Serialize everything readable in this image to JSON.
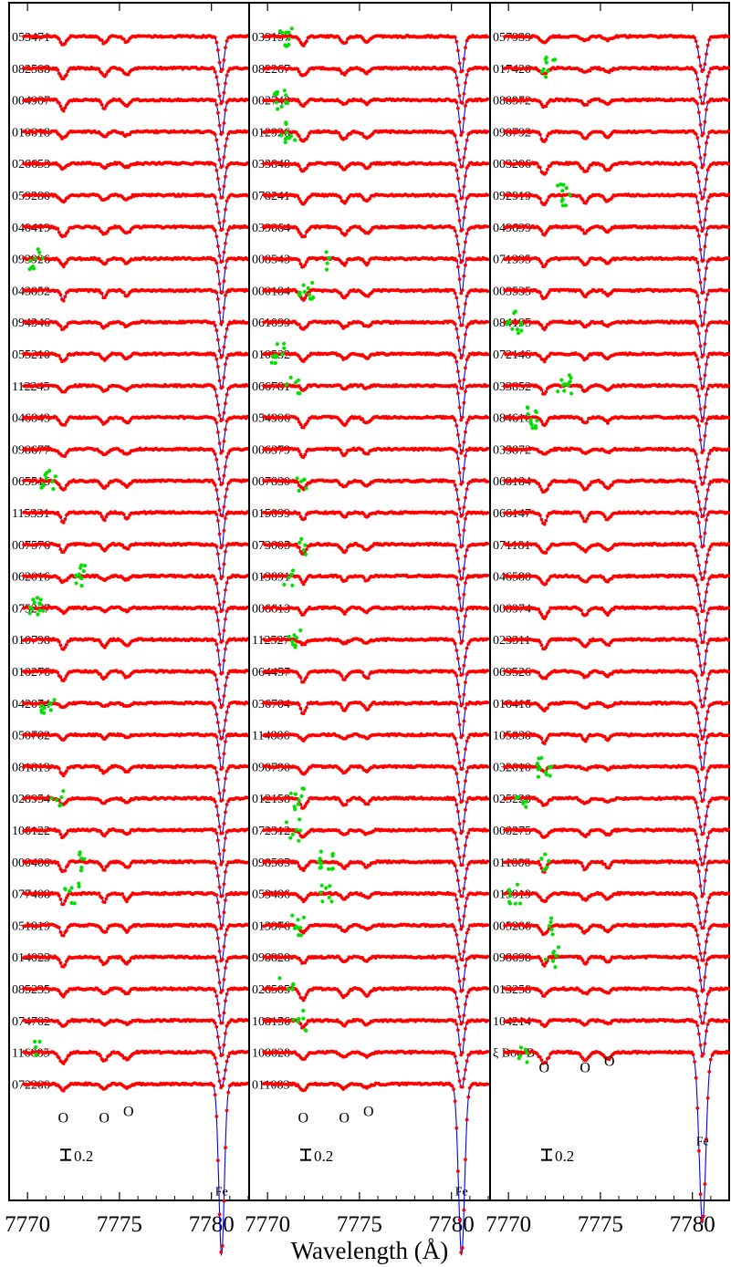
{
  "chart_data": {
    "type": "line",
    "x_axis": {
      "label": "Wavelength (Å)",
      "range": [
        7769,
        7782
      ],
      "ticks": [
        7770,
        7775,
        7780
      ],
      "tick_labels": [
        "7770",
        "7775",
        "7780"
      ]
    },
    "scale_bar": {
      "label": "0.2",
      "value": 0.2
    },
    "legend": null,
    "series_colors": {
      "observed": "#ff0000",
      "model": "#0000ff",
      "masked": "#00e000"
    },
    "line_markers": [
      {
        "label": "O",
        "wavelength": 7771.94
      },
      {
        "label": "O",
        "wavelength": 7774.17
      },
      {
        "label": "O",
        "wavelength": 7775.39
      },
      {
        "label": "Fe",
        "wavelength": 7780.55
      }
    ],
    "line_depths": [
      0.16,
      0.12,
      0.1,
      0.6
    ],
    "panels": [
      {
        "marker_labels": [
          "O",
          "O",
          "O",
          "Fe"
        ],
        "spectra": [
          "053471",
          "082588",
          "004907",
          "010818",
          "026653",
          "059280",
          "040419",
          "093926",
          "043852",
          "094346",
          "055210",
          "112245",
          "046843",
          "098677",
          "065515",
          "115331",
          "007576",
          "062016",
          "075277",
          "010798",
          "010276",
          "042074",
          "050782",
          "081813",
          "028954",
          "106122",
          "000400",
          "077408",
          "051819",
          "014023",
          "085235",
          "074702",
          "116085",
          "072200"
        ]
      },
      {
        "marker_labels": [
          "O",
          "O",
          "O",
          "Fe"
        ],
        "spectra": [
          "039157",
          "082267",
          "002742",
          "012926",
          "033848",
          "078241",
          "039064",
          "008543",
          "000184",
          "061099",
          "010532",
          "066781",
          "054906",
          "006379",
          "007830",
          "015099",
          "073005",
          "013891",
          "006613",
          "112527",
          "064457",
          "036704",
          "114886",
          "090790",
          "012158",
          "072312",
          "098505",
          "053486",
          "013976",
          "098828",
          "026505",
          "108156",
          "108028",
          "011083"
        ]
      },
      {
        "marker_labels": [
          "O",
          "O",
          "O",
          "Fe"
        ],
        "spectra": [
          "057939",
          "017420",
          "088972",
          "098792",
          "003206",
          "092919",
          "049699",
          "071395",
          "003535",
          "084195",
          "072146",
          "033852",
          "084616",
          "035872",
          "068184",
          "066147",
          "071181",
          "046580",
          "000974",
          "023311",
          "069526",
          "010416",
          "105038",
          "032010",
          "025220",
          "008275",
          "011000",
          "015919",
          "005286",
          "098698",
          "013258",
          "104214",
          "ξ Boo B"
        ]
      }
    ]
  }
}
